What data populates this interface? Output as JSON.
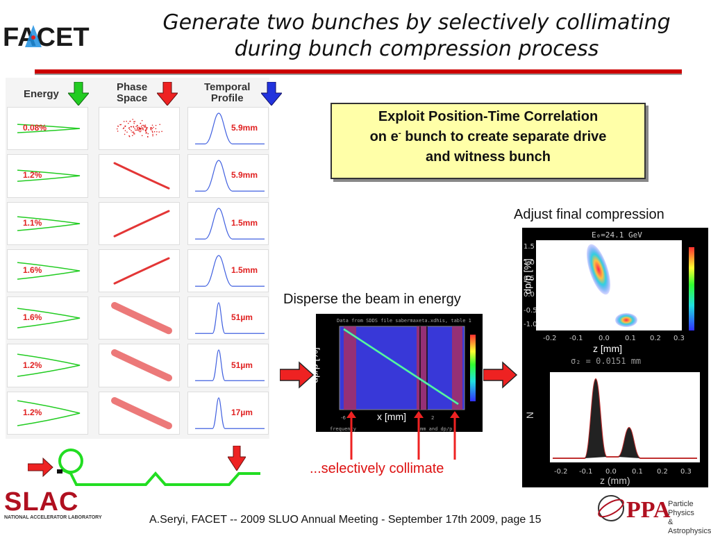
{
  "header": {
    "logo_text": "FACET",
    "title_line1": "Generate two bunches by selectively collimating",
    "title_line2": "during bunch compression process"
  },
  "colors": {
    "accent_red": "#cc0000",
    "box_yellow": "#ffffa8",
    "green_arrow": "#22cc22",
    "red_arrow": "#ee2222",
    "blue_arrow": "#2233dd"
  },
  "left_panel": {
    "col_energy": "Energy",
    "col_phase_1": "Phase",
    "col_phase_2": "Space",
    "col_temporal_1": "Temporal",
    "col_temporal_2": "Profile",
    "energy_spreads": [
      "0.08%",
      "1.2%",
      "1.1%",
      "1.6%",
      "1.6%",
      "1.2%",
      "1.2%"
    ],
    "bunch_lengths": [
      "5.9mm",
      "5.9mm",
      "1.5mm",
      "1.5mm",
      "51µm",
      "51µm",
      "17µm"
    ]
  },
  "callout": {
    "line1": "Exploit Position-Time Correlation",
    "line2_a": "on e",
    "line2_sup": "-",
    "line2_b": " bunch to create separate drive",
    "line3": "and witness bunch"
  },
  "labels": {
    "adjust": "Adjust final compression",
    "disperse": "Disperse the beam in energy",
    "collimate": "...selectively collimate"
  },
  "middle_plot": {
    "title": "Data from SDDS file sabermaxeta.xdhis, table 1",
    "xlabel": "x [mm]",
    "ylabel": "dp/p [%]",
    "bottom_left": "frequency",
    "bottom_right": "mm and dp/p"
  },
  "right_top_plot": {
    "title": "E₀=24.1 GeV",
    "xlabel": "z [mm]",
    "ylabel": "dp/p [%]",
    "xticks": [
      "-0.2",
      "-0.1",
      "0.0",
      "0.1",
      "0.2",
      "0.3"
    ],
    "yticks": [
      "1.5",
      "1.0",
      "0.5",
      "0.0",
      "-0.5",
      "-1.0"
    ]
  },
  "right_bottom_plot": {
    "title": "σ₂ = 0.0151 mm",
    "xlabel": "z (mm)",
    "ylabel": "N",
    "xticks": [
      "-0.2",
      "-0.1",
      "0.0",
      "0.1",
      "0.2",
      "0.3"
    ]
  },
  "footer": {
    "text": "A.Seryi, FACET  -- 2009 SLUO Annual Meeting - September 17th 2009, page 15",
    "slac": "SLAC",
    "slac_sub": "NATIONAL ACCELERATOR LABORATORY",
    "ppa": "PPA",
    "ppa_sub1": "Particle Physics",
    "ppa_sub2": "& Astrophysics"
  }
}
